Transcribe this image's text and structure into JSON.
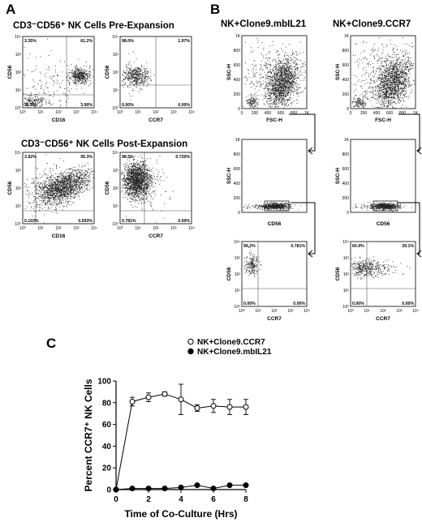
{
  "panels": {
    "a": "A",
    "b": "B",
    "c": "C"
  },
  "panelA": {
    "title_pre": "CD3⁻CD56⁺ NK Cells Pre-Expansion",
    "title_post": "CD3⁻CD56⁺ NK Cells Post-Expansion",
    "plots": [
      {
        "ylabel": "CD56",
        "xlabel": "CD16",
        "q": [
          "3.35%",
          "61.2%",
          "31.5%",
          "3.90%"
        ]
      },
      {
        "ylabel": "CD56",
        "xlabel": "CCR7",
        "q": [
          "98.0%",
          "1.97%",
          "0.00%",
          "0.00%"
        ]
      },
      {
        "ylabel": "CD56",
        "xlabel": "CD16",
        "q": [
          "3.92%",
          "95.3%",
          "0.103%",
          "0.693%"
        ]
      },
      {
        "ylabel": "CD56",
        "xlabel": "CCR7",
        "q": [
          "98.5%",
          "0.720%",
          "0.781%",
          "0.00%"
        ]
      }
    ],
    "log_ticks": [
      "10⁰",
      "10¹",
      "10²",
      "10³",
      "10⁴"
    ]
  },
  "panelB": {
    "col1": "NK+Clone9.mbIL21",
    "col2": "NK+Clone9.CCR7",
    "scatter": {
      "ylabel": "SSC-H",
      "xlabel": "FSC-H",
      "yticks": [
        "1K",
        "800",
        "600",
        "400",
        "200",
        "0"
      ],
      "xticks": [
        "0",
        "200",
        "400",
        "600",
        "800",
        "1K"
      ]
    },
    "gate": {
      "ylabel": "SSC-H",
      "xlabel": "CD56"
    },
    "ccr7": [
      {
        "ylabel": "CD56",
        "xlabel": "CCR7",
        "q": [
          "99.2%",
          "0.781%",
          "0.00%",
          "0.00%"
        ]
      },
      {
        "ylabel": "CD56",
        "xlabel": "CCR7",
        "q": [
          "60.9%",
          "39.1%",
          "0.00%",
          "0.00%"
        ]
      }
    ]
  },
  "chart_data": {
    "type": "line",
    "title": "",
    "xlabel": "Time of Co-Culture (Hrs)",
    "ylabel": "Percent CCR7⁺ NK Cells",
    "xlim": [
      0,
      8
    ],
    "ylim": [
      0,
      100
    ],
    "xticks": [
      0,
      2,
      4,
      6,
      8
    ],
    "yticks": [
      0,
      20,
      40,
      60,
      80,
      100
    ],
    "legend_position": "top-right",
    "series": [
      {
        "name": "NK+Clone9.CCR7",
        "marker": "open-circle",
        "x": [
          0,
          1,
          2,
          3,
          4,
          5,
          6,
          7,
          8
        ],
        "y": [
          0,
          81,
          85,
          88,
          83,
          75,
          77,
          76,
          76
        ],
        "err": [
          0,
          4,
          4,
          2,
          14,
          3,
          6,
          7,
          7
        ]
      },
      {
        "name": "NK+Clone9.mbIL21",
        "marker": "filled-circle",
        "x": [
          0,
          1,
          2,
          3,
          4,
          5,
          6,
          7,
          8
        ],
        "y": [
          0,
          1,
          1,
          1,
          2,
          4,
          1,
          4,
          4
        ],
        "err": [
          0,
          0,
          0,
          0,
          0,
          1,
          0,
          1,
          1
        ]
      }
    ]
  }
}
